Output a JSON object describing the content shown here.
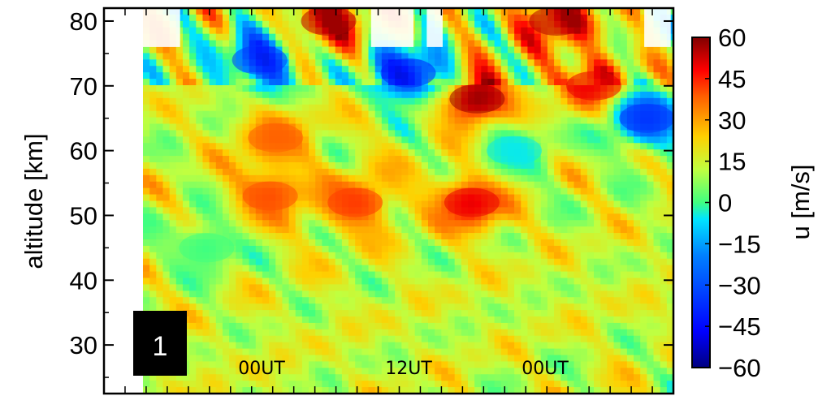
{
  "chart_data": {
    "type": "heatmap",
    "panel_label": "1",
    "xlabel": "",
    "ylabel": "altitude [km]",
    "y_ticks": [
      30,
      40,
      50,
      60,
      70,
      80
    ],
    "ylim": [
      22.5,
      82
    ],
    "x_time_labels": [
      "00UT",
      "12UT",
      "00UT"
    ],
    "x_minor_tick_count": 27,
    "colorbar": {
      "label": "u [m/s]",
      "range": [
        -60,
        60
      ],
      "ticks": [
        60,
        45,
        30,
        15,
        0,
        -15,
        -30,
        -45,
        -60
      ],
      "tick_labels": [
        "60",
        "45",
        "30",
        "15",
        "0",
        "−15",
        "−30",
        "−45",
        "−60"
      ],
      "colormap": "jet"
    },
    "colors": {
      "jet_stops": [
        "#000080",
        "#0000ff",
        "#0080ff",
        "#00e5ff",
        "#40ff80",
        "#c0ff40",
        "#ffd000",
        "#ff6000",
        "#ff0000",
        "#800000"
      ]
    },
    "features": [
      {
        "name": "eastward wind maximum",
        "time_fraction": 0.62,
        "altitude_km": 52,
        "u_ms": 50
      },
      {
        "name": "eastward wind maximum",
        "time_fraction": 0.63,
        "altitude_km": 68,
        "u_ms": 58
      },
      {
        "name": "eastward wind maximum",
        "time_fraction": 0.4,
        "altitude_km": 52,
        "u_ms": 42
      },
      {
        "name": "eastward wind maximum",
        "time_fraction": 0.24,
        "altitude_km": 53,
        "u_ms": 40
      },
      {
        "name": "eastward wind maximum",
        "time_fraction": 0.25,
        "altitude_km": 62,
        "u_ms": 38
      },
      {
        "name": "eastward wind maximum",
        "time_fraction": 0.35,
        "altitude_km": 80,
        "u_ms": 55
      },
      {
        "name": "eastward wind maximum",
        "time_fraction": 0.78,
        "altitude_km": 80,
        "u_ms": 55
      },
      {
        "name": "eastward wind maximum",
        "time_fraction": 0.85,
        "altitude_km": 70,
        "u_ms": 50
      },
      {
        "name": "westward wind minimum",
        "time_fraction": 0.22,
        "altitude_km": 74,
        "u_ms": -35
      },
      {
        "name": "westward wind minimum",
        "time_fraction": 0.5,
        "altitude_km": 72,
        "u_ms": -40
      },
      {
        "name": "westward wind minimum",
        "time_fraction": 0.95,
        "altitude_km": 65,
        "u_ms": -35
      },
      {
        "name": "weak wind band",
        "time_fraction": 0.7,
        "altitude_km": 60,
        "u_ms": -5
      },
      {
        "name": "weak wind band",
        "time_fraction": 0.12,
        "altitude_km": 45,
        "u_ms": 0
      }
    ]
  }
}
